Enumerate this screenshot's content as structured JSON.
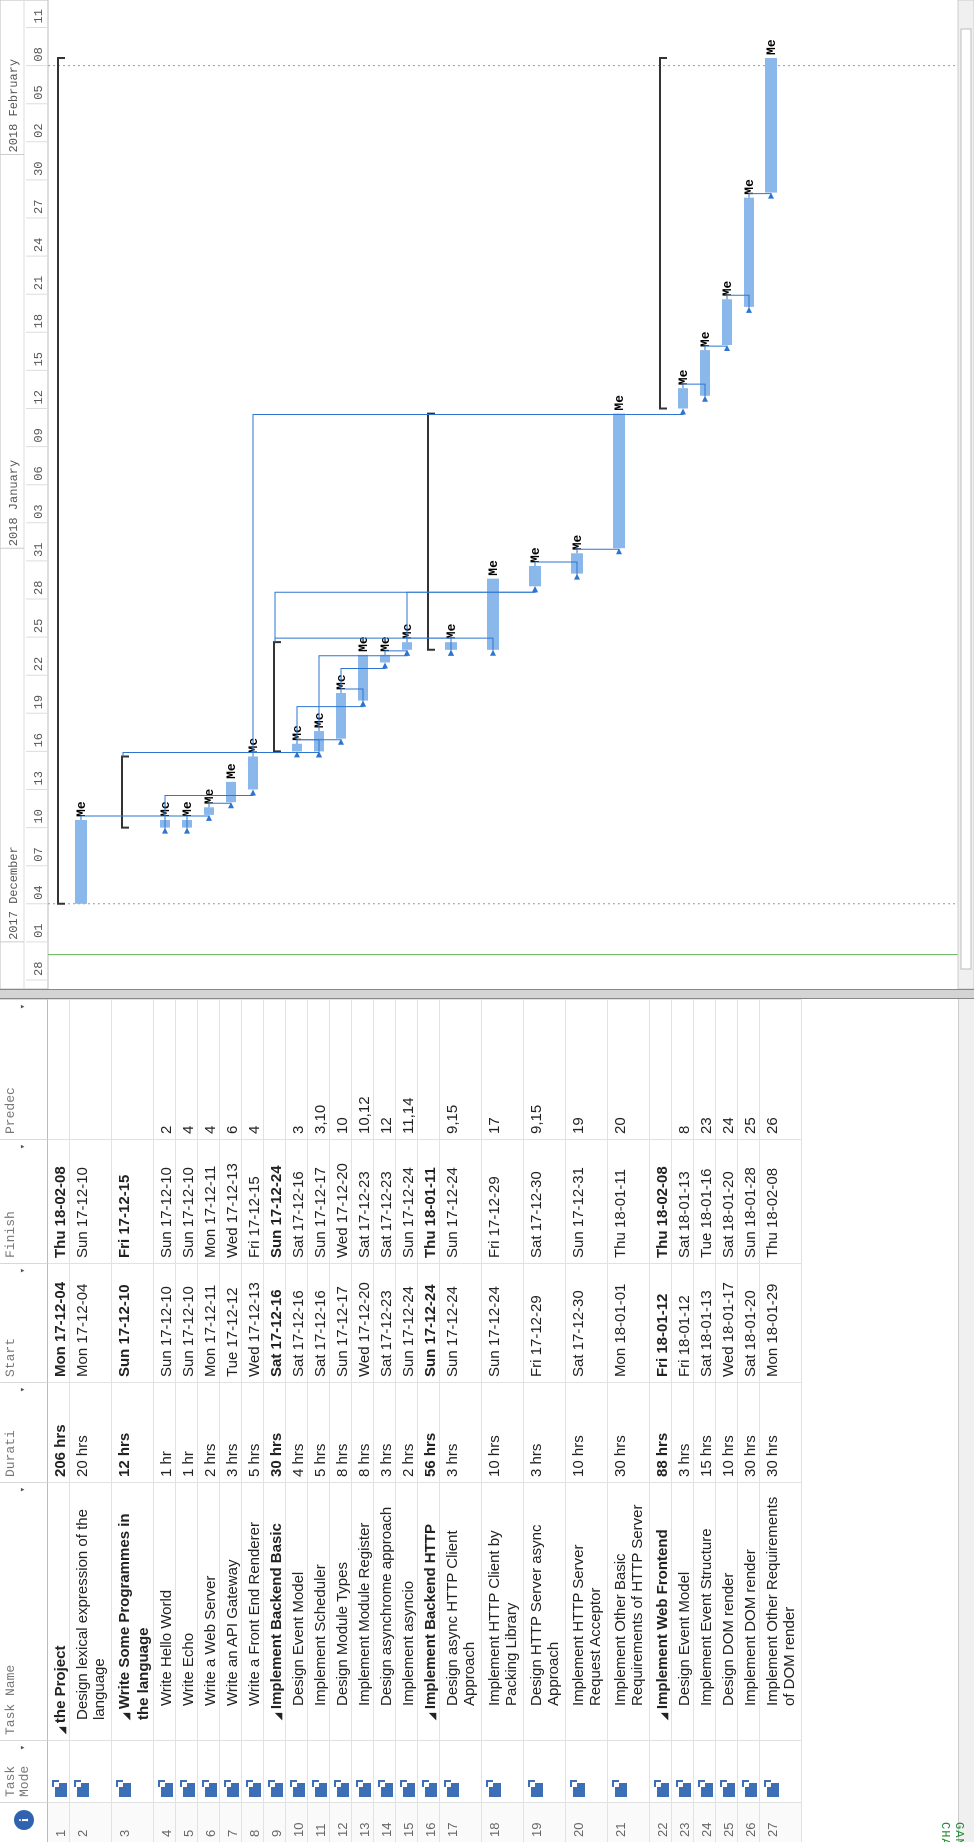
{
  "side_label": "GANTT CHART",
  "table": {
    "columns": [
      {
        "key": "info",
        "label": ""
      },
      {
        "key": "mode",
        "label": "Task Mode"
      },
      {
        "key": "name",
        "label": "Task Name"
      },
      {
        "key": "duration",
        "label": "Durati"
      },
      {
        "key": "start",
        "label": "Start"
      },
      {
        "key": "finish",
        "label": "Finish"
      },
      {
        "key": "pred",
        "label": "Predec"
      }
    ],
    "rows": [
      {
        "id": "1",
        "name": "the Project",
        "duration": "206 hrs",
        "start": "Mon 17-12-04",
        "finish": "Thu 18-02-08",
        "pred": "",
        "summary": true,
        "level": 0
      },
      {
        "id": "2",
        "name": "Design lexical expression of the language",
        "duration": "20 hrs",
        "start": "Mon 17-12-04",
        "finish": "Sun 17-12-10",
        "pred": "",
        "summary": false,
        "level": 1
      },
      {
        "id": "3",
        "name": "Write Some Programmes in the language",
        "duration": "12 hrs",
        "start": "Sun 17-12-10",
        "finish": "Fri 17-12-15",
        "pred": "",
        "summary": true,
        "level": 1
      },
      {
        "id": "4",
        "name": "Write Hello World",
        "duration": "1 hr",
        "start": "Sun 17-12-10",
        "finish": "Sun 17-12-10",
        "pred": "2",
        "summary": false,
        "level": 2
      },
      {
        "id": "5",
        "name": "Write Echo",
        "duration": "1 hr",
        "start": "Sun 17-12-10",
        "finish": "Sun 17-12-10",
        "pred": "4",
        "summary": false,
        "level": 2
      },
      {
        "id": "6",
        "name": "Write a Web Server",
        "duration": "2 hrs",
        "start": "Mon 17-12-11",
        "finish": "Mon 17-12-11",
        "pred": "4",
        "summary": false,
        "level": 2
      },
      {
        "id": "7",
        "name": "Write an API Gateway",
        "duration": "3 hrs",
        "start": "Tue 17-12-12",
        "finish": "Wed 17-12-13",
        "pred": "6",
        "summary": false,
        "level": 2
      },
      {
        "id": "8",
        "name": "Write a Front End Renderer",
        "duration": "5 hrs",
        "start": "Wed 17-12-13",
        "finish": "Fri 17-12-15",
        "pred": "4",
        "summary": false,
        "level": 2
      },
      {
        "id": "9",
        "name": "Implement Backend Basic",
        "duration": "30 hrs",
        "start": "Sat 17-12-16",
        "finish": "Sun 17-12-24",
        "pred": "",
        "summary": true,
        "level": 1
      },
      {
        "id": "10",
        "name": "Design Event Model",
        "duration": "4 hrs",
        "start": "Sat 17-12-16",
        "finish": "Sat 17-12-16",
        "pred": "3",
        "summary": false,
        "level": 2
      },
      {
        "id": "11",
        "name": "Implement Scheduler",
        "duration": "5 hrs",
        "start": "Sat 17-12-16",
        "finish": "Sun 17-12-17",
        "pred": "3,10",
        "summary": false,
        "level": 2
      },
      {
        "id": "12",
        "name": "Design Module Types",
        "duration": "8 hrs",
        "start": "Sun 17-12-17",
        "finish": "Wed 17-12-20",
        "pred": "10",
        "summary": false,
        "level": 2
      },
      {
        "id": "13",
        "name": "Implement Module Register",
        "duration": "8 hrs",
        "start": "Wed 17-12-20",
        "finish": "Sat 17-12-23",
        "pred": "10,12",
        "summary": false,
        "level": 2
      },
      {
        "id": "14",
        "name": "Design asynchrome approach",
        "duration": "3 hrs",
        "start": "Sat 17-12-23",
        "finish": "Sat 17-12-23",
        "pred": "12",
        "summary": false,
        "level": 2
      },
      {
        "id": "15",
        "name": "Implement asyncio",
        "duration": "2 hrs",
        "start": "Sun 17-12-24",
        "finish": "Sun 17-12-24",
        "pred": "11,14",
        "summary": false,
        "level": 2
      },
      {
        "id": "16",
        "name": "Implement Backend HTTP",
        "duration": "56 hrs",
        "start": "Sun 17-12-24",
        "finish": "Thu 18-01-11",
        "pred": "",
        "summary": true,
        "level": 1
      },
      {
        "id": "17",
        "name": "Design async HTTP Client Approach",
        "duration": "3 hrs",
        "start": "Sun 17-12-24",
        "finish": "Sun 17-12-24",
        "pred": "9,15",
        "summary": false,
        "level": 2
      },
      {
        "id": "18",
        "name": "Implement HTTP Client by Packing Library",
        "duration": "10 hrs",
        "start": "Sun 17-12-24",
        "finish": "Fri 17-12-29",
        "pred": "17",
        "summary": false,
        "level": 2
      },
      {
        "id": "19",
        "name": "Design HTTP Server async Approach",
        "duration": "3 hrs",
        "start": "Fri 17-12-29",
        "finish": "Sat 17-12-30",
        "pred": "9,15",
        "summary": false,
        "level": 2
      },
      {
        "id": "20",
        "name": "Implement HTTP Server Request Acceptor",
        "duration": "10 hrs",
        "start": "Sat 17-12-30",
        "finish": "Sun 17-12-31",
        "pred": "19",
        "summary": false,
        "level": 2
      },
      {
        "id": "21",
        "name": "Implement Other Basic Requirements of HTTP Server",
        "duration": "30 hrs",
        "start": "Mon 18-01-01",
        "finish": "Thu 18-01-11",
        "pred": "20",
        "summary": false,
        "level": 2
      },
      {
        "id": "22",
        "name": "Implement Web Frontend",
        "duration": "88 hrs",
        "start": "Fri 18-01-12",
        "finish": "Thu 18-02-08",
        "pred": "",
        "summary": true,
        "level": 1
      },
      {
        "id": "23",
        "name": "Design Event Model",
        "duration": "3 hrs",
        "start": "Fri 18-01-12",
        "finish": "Sat 18-01-13",
        "pred": "8",
        "summary": false,
        "level": 2
      },
      {
        "id": "24",
        "name": "Implement Event Structure",
        "duration": "15 hrs",
        "start": "Sat 18-01-13",
        "finish": "Tue 18-01-16",
        "pred": "23",
        "summary": false,
        "level": 2
      },
      {
        "id": "25",
        "name": "Design DOM render",
        "duration": "10 hrs",
        "start": "Wed 18-01-17",
        "finish": "Sat 18-01-20",
        "pred": "24",
        "summary": false,
        "level": 2
      },
      {
        "id": "26",
        "name": "Implement DOM render",
        "duration": "30 hrs",
        "start": "Sat 18-01-20",
        "finish": "Sun 18-01-28",
        "pred": "25",
        "summary": false,
        "level": 2
      },
      {
        "id": "27",
        "name": "Implement Other Requirements of DOM render",
        "duration": "30 hrs",
        "start": "Mon 18-01-29",
        "finish": "Thu 18-02-08",
        "pred": "26",
        "summary": false,
        "level": 2
      }
    ]
  },
  "timeline": {
    "months": [
      "2017 December",
      "2018 January",
      "2018 February"
    ],
    "ticks": [
      "28",
      "01",
      "04",
      "07",
      "10",
      "13",
      "16",
      "19",
      "22",
      "25",
      "28",
      "31",
      "03",
      "06",
      "09",
      "12",
      "15",
      "18",
      "21",
      "24",
      "27",
      "30",
      "02",
      "05",
      "08",
      "11"
    ],
    "resource_label": "Me",
    "bar_color": "#8ab8ea",
    "link_color": "#2e75d0",
    "summary_color": "#333333"
  },
  "icons": {
    "info": "info-icon",
    "mode": "auto-schedule-icon"
  }
}
